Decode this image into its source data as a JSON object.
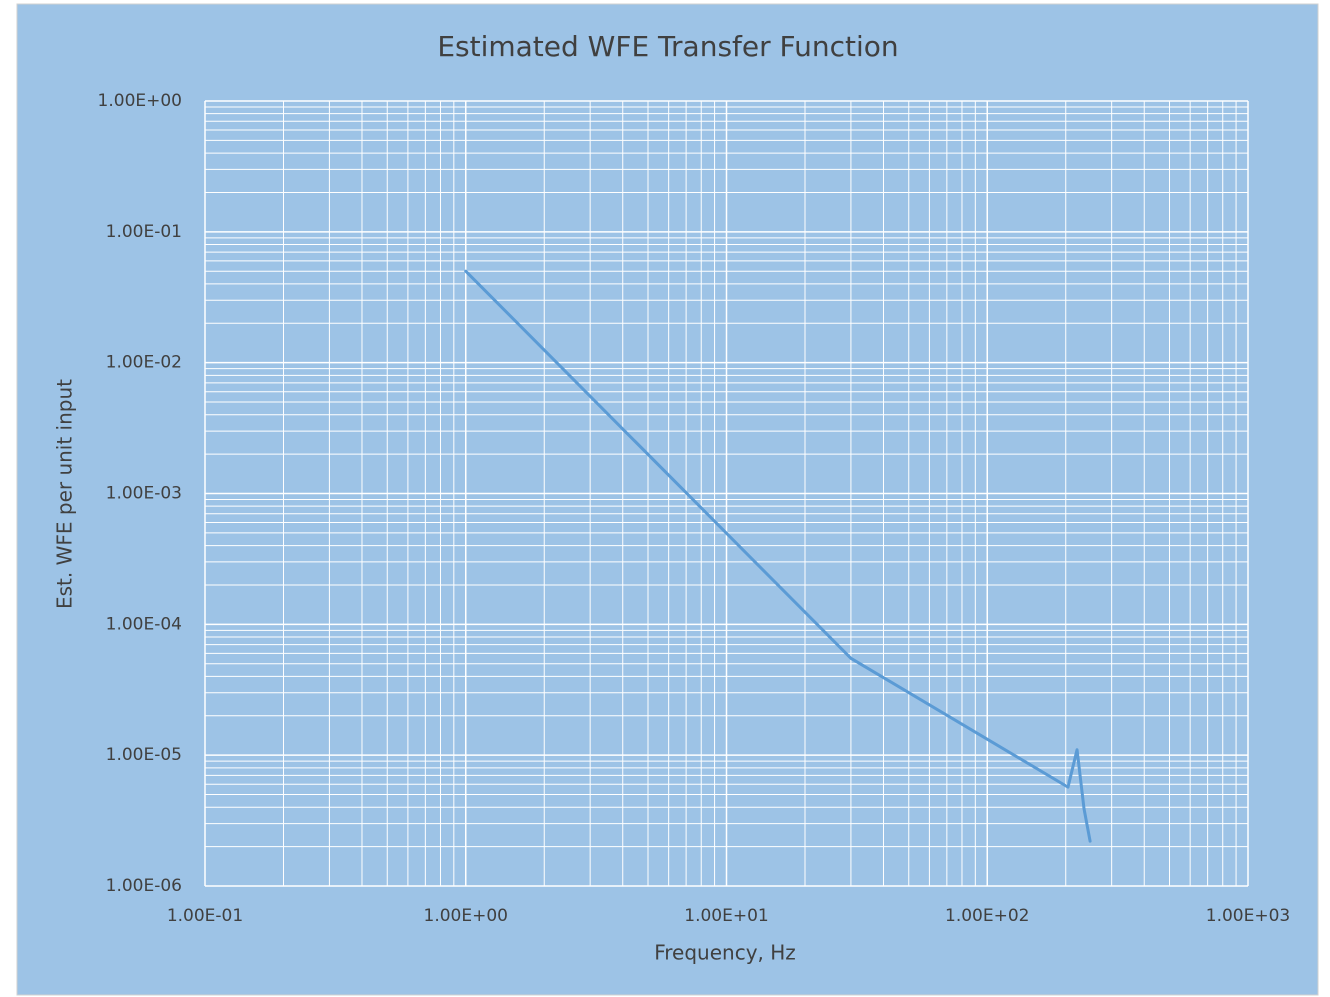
{
  "chart_data": {
    "type": "line",
    "title": "Estimated WFE Transfer Function",
    "x_label": "Frequency, Hz",
    "y_label": "Est. WFE  per unit input",
    "x_scale": "log",
    "y_scale": "log",
    "grid": true,
    "minor_grid": true,
    "background": "#9dc3e6",
    "grid_color": "#ffffff",
    "xlim": [
      0.1,
      1000
    ],
    "ylim": [
      1e-06,
      1
    ],
    "xticks": [
      {
        "value": 0.1,
        "label": "1.00E-01"
      },
      {
        "value": 1,
        "label": "1.00E+00"
      },
      {
        "value": 10,
        "label": "1.00E+01"
      },
      {
        "value": 100,
        "label": "1.00E+02"
      },
      {
        "value": 1000,
        "label": "1.00E+03"
      }
    ],
    "yticks": [
      {
        "value": 1e-06,
        "label": "1.00E-06"
      },
      {
        "value": 1e-05,
        "label": "1.00E-05"
      },
      {
        "value": 0.0001,
        "label": "1.00E-04"
      },
      {
        "value": 0.001,
        "label": "1.00E-03"
      },
      {
        "value": 0.01,
        "label": "1.00E-02"
      },
      {
        "value": 0.1,
        "label": "1.00E-01"
      },
      {
        "value": 1,
        "label": "1.00E+00"
      }
    ],
    "x": [
      1,
      30,
      204,
      221,
      235,
      248
    ],
    "series": [
      {
        "color": "#5b9bd5",
        "values": [
          0.05,
          5.5e-05,
          5.7e-06,
          1.1e-05,
          3.9e-06,
          2.2e-06
        ]
      }
    ]
  }
}
